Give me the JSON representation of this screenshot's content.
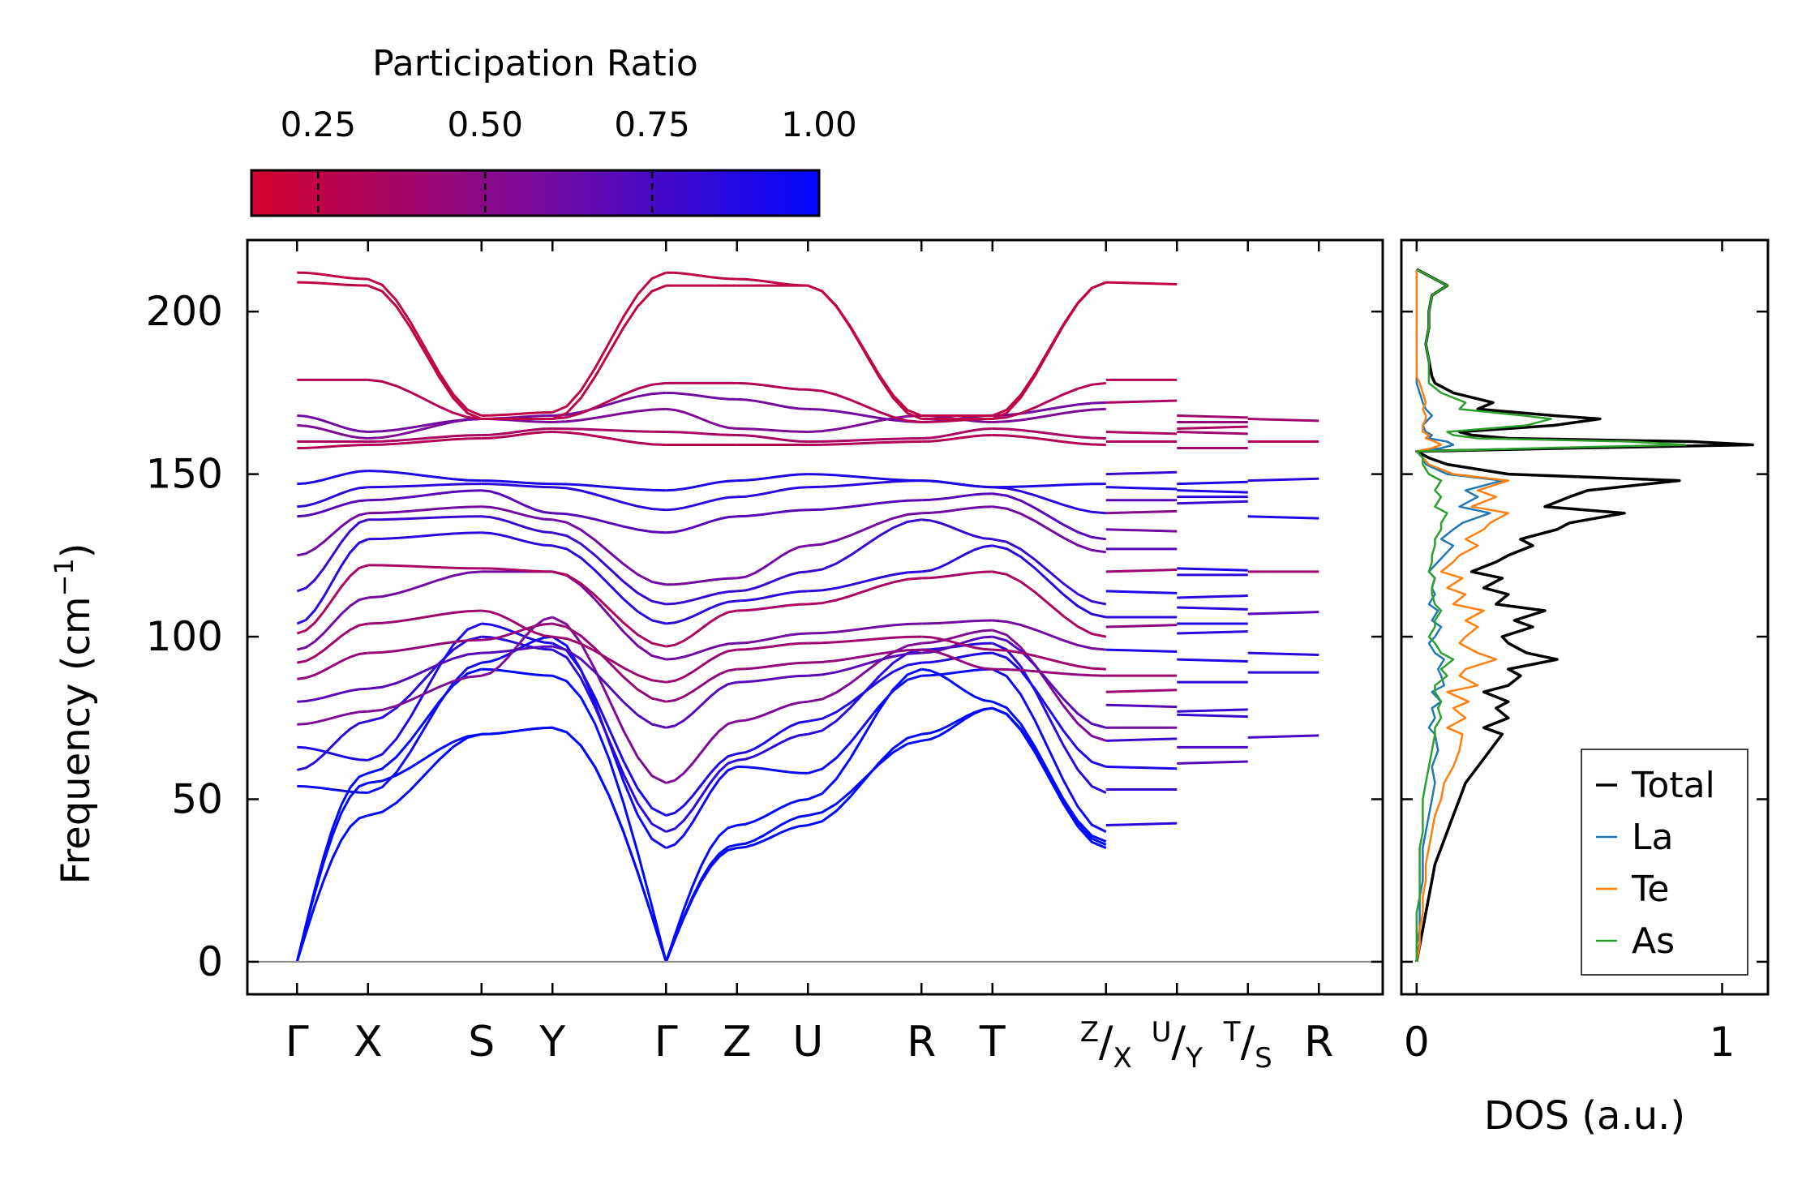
{
  "colors": {
    "low": "#d4022e",
    "mid": "#7a0a9c",
    "high": "#0008ff",
    "total": "#000000",
    "La": "#1f77b4",
    "Te": "#ff7f0e",
    "As": "#2ca02c",
    "zero_line": "#888888"
  },
  "chart_data": [
    {
      "type": "line",
      "title": "",
      "xlabel": "",
      "ylabel": "Frequency (cm$^{-1}$)",
      "ylabel_main": "Frequency (cm",
      "ylabel_sup": "−1",
      "ylabel_close": ")",
      "ylim": [
        -10,
        222
      ],
      "yticks": [
        0,
        50,
        100,
        150,
        200
      ],
      "ytick_labels": [
        "0",
        "50",
        "100",
        "150",
        "200"
      ],
      "x_path": [
        0,
        1,
        2.6,
        3.6,
        5.2,
        6.2,
        7.2,
        8.8,
        9.8,
        11.4
      ],
      "segments": [
        [
          0,
          11.4
        ],
        [
          11.4,
          12.4
        ],
        [
          12.4,
          13.4
        ],
        [
          13.4,
          14.4
        ]
      ],
      "xticks": [
        0,
        1,
        2.6,
        3.6,
        5.2,
        6.2,
        7.2,
        8.8,
        9.8,
        11.4,
        12.4,
        13.4,
        14.4
      ],
      "xtick_labels": [
        {
          "main": "Γ"
        },
        {
          "main": "X"
        },
        {
          "main": "S"
        },
        {
          "main": "Y"
        },
        {
          "main": "Γ"
        },
        {
          "main": "Z"
        },
        {
          "main": "U"
        },
        {
          "main": "R"
        },
        {
          "main": "T"
        },
        {
          "sup": "Z",
          "slash": "/",
          "sub": "X"
        },
        {
          "sup": "U",
          "slash": "/",
          "sub": "Y"
        },
        {
          "sup": "T",
          "slash": "/",
          "sub": "S"
        },
        {
          "main": "R"
        }
      ],
      "colorbar": {
        "label": "Participation Ratio",
        "range": [
          0.15,
          1.0
        ],
        "ticks": [
          0.25,
          0.5,
          0.75,
          1.0
        ],
        "tick_labels": [
          "0.25",
          "0.50",
          "0.75",
          "1.00"
        ]
      },
      "bands": [
        {
          "y": [
            0,
            45,
            70,
            72,
            0,
            35,
            42,
            70,
            78,
            35
          ],
          "pr": 1.0
        },
        {
          "y": [
            0,
            55,
            70,
            72,
            0,
            36,
            45,
            68,
            78,
            37
          ],
          "pr": 1.0
        },
        {
          "y": [
            0,
            58,
            90,
            88,
            0,
            42,
            50,
            90,
            80,
            36
          ],
          "pr": 1.0
        },
        {
          "y": [
            54,
            52,
            92,
            100,
            35,
            60,
            58,
            88,
            90,
            40
          ],
          "pr": 0.95
        },
        {
          "y": [
            59,
            74,
            100,
            96,
            40,
            62,
            70,
            96,
            98,
            52
          ],
          "pr": 0.85
        },
        {
          "y": [
            66,
            62,
            104,
            98,
            45,
            64,
            74,
            92,
            95,
            60
          ],
          "pr": 0.9
        },
        {
          "y": [
            73,
            77,
            88,
            106,
            55,
            74,
            80,
            98,
            102,
            68
          ],
          "pr": 0.55
        },
        {
          "y": [
            80,
            84,
            95,
            97,
            72,
            86,
            88,
            95,
            100,
            72
          ],
          "pr": 0.7
        },
        {
          "y": [
            87,
            95,
            99,
            104,
            80,
            90,
            92,
            96,
            90,
            88
          ],
          "pr": 0.45
        },
        {
          "y": [
            92,
            104,
            108,
            100,
            86,
            96,
            98,
            100,
            96,
            90
          ],
          "pr": 0.4
        },
        {
          "y": [
            96,
            112,
            120,
            120,
            93,
            98,
            101,
            104,
            105,
            96
          ],
          "pr": 0.6
        },
        {
          "y": [
            101,
            122,
            121,
            120,
            97,
            108,
            110,
            118,
            120,
            100
          ],
          "pr": 0.35
        },
        {
          "y": [
            104,
            130,
            132,
            128,
            104,
            111,
            114,
            120,
            128,
            106
          ],
          "pr": 0.85
        },
        {
          "y": [
            114,
            136,
            137,
            132,
            110,
            114,
            120,
            136,
            130,
            110
          ],
          "pr": 0.8
        },
        {
          "y": [
            125,
            138,
            140,
            136,
            116,
            118,
            128,
            138,
            140,
            126
          ],
          "pr": 0.6
        },
        {
          "y": [
            137,
            142,
            145,
            138,
            132,
            137,
            139,
            142,
            144,
            130
          ],
          "pr": 0.7
        },
        {
          "y": [
            140,
            146,
            147,
            146,
            139,
            143,
            146,
            148,
            146,
            138
          ],
          "pr": 0.85
        },
        {
          "y": [
            147,
            151,
            148,
            147,
            145,
            148,
            150,
            148,
            146,
            147
          ],
          "pr": 0.9
        },
        {
          "y": [
            158,
            159,
            161,
            163,
            159,
            159,
            159,
            160,
            162,
            159
          ],
          "pr": 0.3
        },
        {
          "y": [
            160,
            160,
            162,
            164,
            163,
            162,
            160,
            161,
            164,
            161
          ],
          "pr": 0.35
        },
        {
          "y": [
            165,
            161,
            167,
            166,
            170,
            164,
            163,
            168,
            166,
            170
          ],
          "pr": 0.55
        },
        {
          "y": [
            168,
            163,
            167,
            168,
            175,
            173,
            170,
            166,
            168,
            172
          ],
          "pr": 0.6
        },
        {
          "y": [
            179,
            179,
            167,
            167,
            178,
            178,
            176,
            166,
            167,
            178
          ],
          "pr": 0.3
        },
        {
          "y": [
            209,
            208,
            167,
            167,
            208,
            208,
            208,
            167,
            167,
            209
          ],
          "pr": 0.25
        },
        {
          "y": [
            212,
            210,
            168,
            169,
            212,
            210,
            208,
            168,
            168,
            209
          ],
          "pr": 0.25
        }
      ],
      "stubs": [
        {
          "seg": 1,
          "y": [
            209,
            179,
            172,
            163,
            160,
            150,
            146,
            142,
            138,
            133,
            127,
            120,
            114,
            106,
            103,
            96,
            88,
            83,
            79,
            72,
            68,
            60,
            53,
            42
          ],
          "pr": [
            0.25,
            0.3,
            0.35,
            0.35,
            0.35,
            0.8,
            0.9,
            0.7,
            0.5,
            0.6,
            0.7,
            0.4,
            0.9,
            0.85,
            0.5,
            0.9,
            0.4,
            0.4,
            0.7,
            0.6,
            0.8,
            0.9,
            0.8,
            0.85
          ]
        },
        {
          "seg": 2,
          "y": [
            168,
            166,
            164,
            163,
            158,
            147,
            145,
            143,
            141,
            121,
            119,
            112,
            109,
            104,
            101,
            93,
            86,
            77,
            76,
            66,
            61
          ],
          "pr": [
            0.4,
            0.45,
            0.35,
            0.4,
            0.4,
            0.9,
            0.9,
            0.85,
            0.8,
            0.9,
            0.85,
            0.85,
            0.85,
            0.9,
            0.85,
            0.9,
            0.85,
            0.8,
            0.8,
            0.75,
            0.7
          ]
        },
        {
          "seg": 3,
          "y": [
            167,
            160,
            148,
            137,
            120,
            107,
            95,
            89,
            69
          ],
          "pr": [
            0.4,
            0.3,
            0.85,
            0.9,
            0.4,
            0.7,
            0.85,
            0.85,
            0.75
          ]
        }
      ]
    },
    {
      "type": "line",
      "title": "",
      "xlabel": "DOS (a.u.)",
      "ylabel": "",
      "xlim": [
        -0.05,
        1.15
      ],
      "ylim": [
        -10,
        222
      ],
      "xticks": [
        0,
        1
      ],
      "xtick_labels": [
        "0",
        "1"
      ],
      "legend_position": "bottom-right",
      "legend": [
        "Total",
        "La",
        "Te",
        "As"
      ],
      "freq": [
        0,
        5,
        10,
        15,
        20,
        25,
        30,
        35,
        40,
        45,
        50,
        55,
        60,
        65,
        70,
        72,
        75,
        78,
        80,
        83,
        85,
        88,
        90,
        93,
        95,
        98,
        100,
        103,
        105,
        108,
        110,
        113,
        115,
        118,
        120,
        123,
        125,
        128,
        130,
        133,
        135,
        138,
        140,
        143,
        145,
        148,
        150,
        153,
        155,
        157,
        158,
        159,
        160,
        161,
        162,
        163,
        165,
        167,
        168,
        170,
        172,
        175,
        178,
        180,
        185,
        190,
        195,
        200,
        205,
        208,
        210,
        212,
        213
      ],
      "series": [
        {
          "name": "Total",
          "values": [
            0.0,
            0.01,
            0.02,
            0.03,
            0.04,
            0.05,
            0.06,
            0.08,
            0.1,
            0.12,
            0.14,
            0.16,
            0.2,
            0.24,
            0.28,
            0.22,
            0.3,
            0.26,
            0.3,
            0.22,
            0.3,
            0.34,
            0.3,
            0.46,
            0.36,
            0.3,
            0.28,
            0.38,
            0.32,
            0.42,
            0.26,
            0.3,
            0.22,
            0.28,
            0.18,
            0.26,
            0.3,
            0.38,
            0.34,
            0.46,
            0.5,
            0.68,
            0.42,
            0.5,
            0.56,
            0.86,
            0.3,
            0.1,
            0.04,
            0.0,
            0.5,
            1.1,
            0.9,
            0.3,
            0.18,
            0.14,
            0.45,
            0.6,
            0.45,
            0.2,
            0.25,
            0.12,
            0.06,
            0.05,
            0.04,
            0.03,
            0.04,
            0.04,
            0.05,
            0.1,
            0.06,
            0.02,
            0.0
          ]
        },
        {
          "name": "La",
          "values": [
            0.0,
            0.0,
            0.01,
            0.01,
            0.01,
            0.02,
            0.02,
            0.02,
            0.03,
            0.04,
            0.05,
            0.06,
            0.05,
            0.07,
            0.06,
            0.04,
            0.06,
            0.05,
            0.08,
            0.05,
            0.09,
            0.08,
            0.07,
            0.09,
            0.06,
            0.04,
            0.06,
            0.08,
            0.05,
            0.07,
            0.04,
            0.06,
            0.05,
            0.06,
            0.04,
            0.07,
            0.09,
            0.12,
            0.08,
            0.12,
            0.15,
            0.24,
            0.14,
            0.2,
            0.16,
            0.28,
            0.1,
            0.03,
            0.02,
            0.0,
            0.08,
            0.12,
            0.1,
            0.04,
            0.05,
            0.03,
            0.02,
            0.04,
            0.05,
            0.03,
            0.02,
            0.01,
            0.0,
            0.0,
            0.0,
            0.0,
            0.0,
            0.0,
            0.0,
            0.0,
            0.0,
            0.0,
            0.0
          ]
        },
        {
          "name": "Te",
          "values": [
            0.0,
            0.01,
            0.01,
            0.02,
            0.02,
            0.03,
            0.03,
            0.04,
            0.05,
            0.06,
            0.08,
            0.09,
            0.12,
            0.14,
            0.15,
            0.1,
            0.16,
            0.12,
            0.17,
            0.1,
            0.2,
            0.14,
            0.16,
            0.26,
            0.2,
            0.14,
            0.16,
            0.2,
            0.16,
            0.22,
            0.12,
            0.16,
            0.1,
            0.15,
            0.08,
            0.12,
            0.14,
            0.2,
            0.16,
            0.22,
            0.24,
            0.3,
            0.18,
            0.26,
            0.2,
            0.3,
            0.12,
            0.04,
            0.02,
            0.0,
            0.05,
            0.08,
            0.06,
            0.03,
            0.04,
            0.02,
            0.02,
            0.03,
            0.03,
            0.02,
            0.03,
            0.02,
            0.01,
            0.0,
            0.0,
            0.0,
            0.0,
            0.0,
            0.0,
            0.0,
            0.0,
            0.0,
            0.0
          ]
        },
        {
          "name": "As",
          "values": [
            0.0,
            0.0,
            0.0,
            0.0,
            0.01,
            0.01,
            0.01,
            0.01,
            0.02,
            0.02,
            0.02,
            0.03,
            0.04,
            0.05,
            0.06,
            0.06,
            0.08,
            0.07,
            0.08,
            0.06,
            0.06,
            0.1,
            0.08,
            0.12,
            0.08,
            0.06,
            0.04,
            0.06,
            0.06,
            0.08,
            0.06,
            0.05,
            0.05,
            0.06,
            0.04,
            0.05,
            0.05,
            0.06,
            0.06,
            0.08,
            0.08,
            0.1,
            0.06,
            0.08,
            0.06,
            0.08,
            0.04,
            0.02,
            0.02,
            0.0,
            0.4,
            0.88,
            0.7,
            0.2,
            0.12,
            0.1,
            0.36,
            0.44,
            0.35,
            0.14,
            0.16,
            0.08,
            0.04,
            0.04,
            0.04,
            0.03,
            0.04,
            0.04,
            0.05,
            0.1,
            0.06,
            0.02,
            0.0
          ]
        }
      ]
    }
  ]
}
